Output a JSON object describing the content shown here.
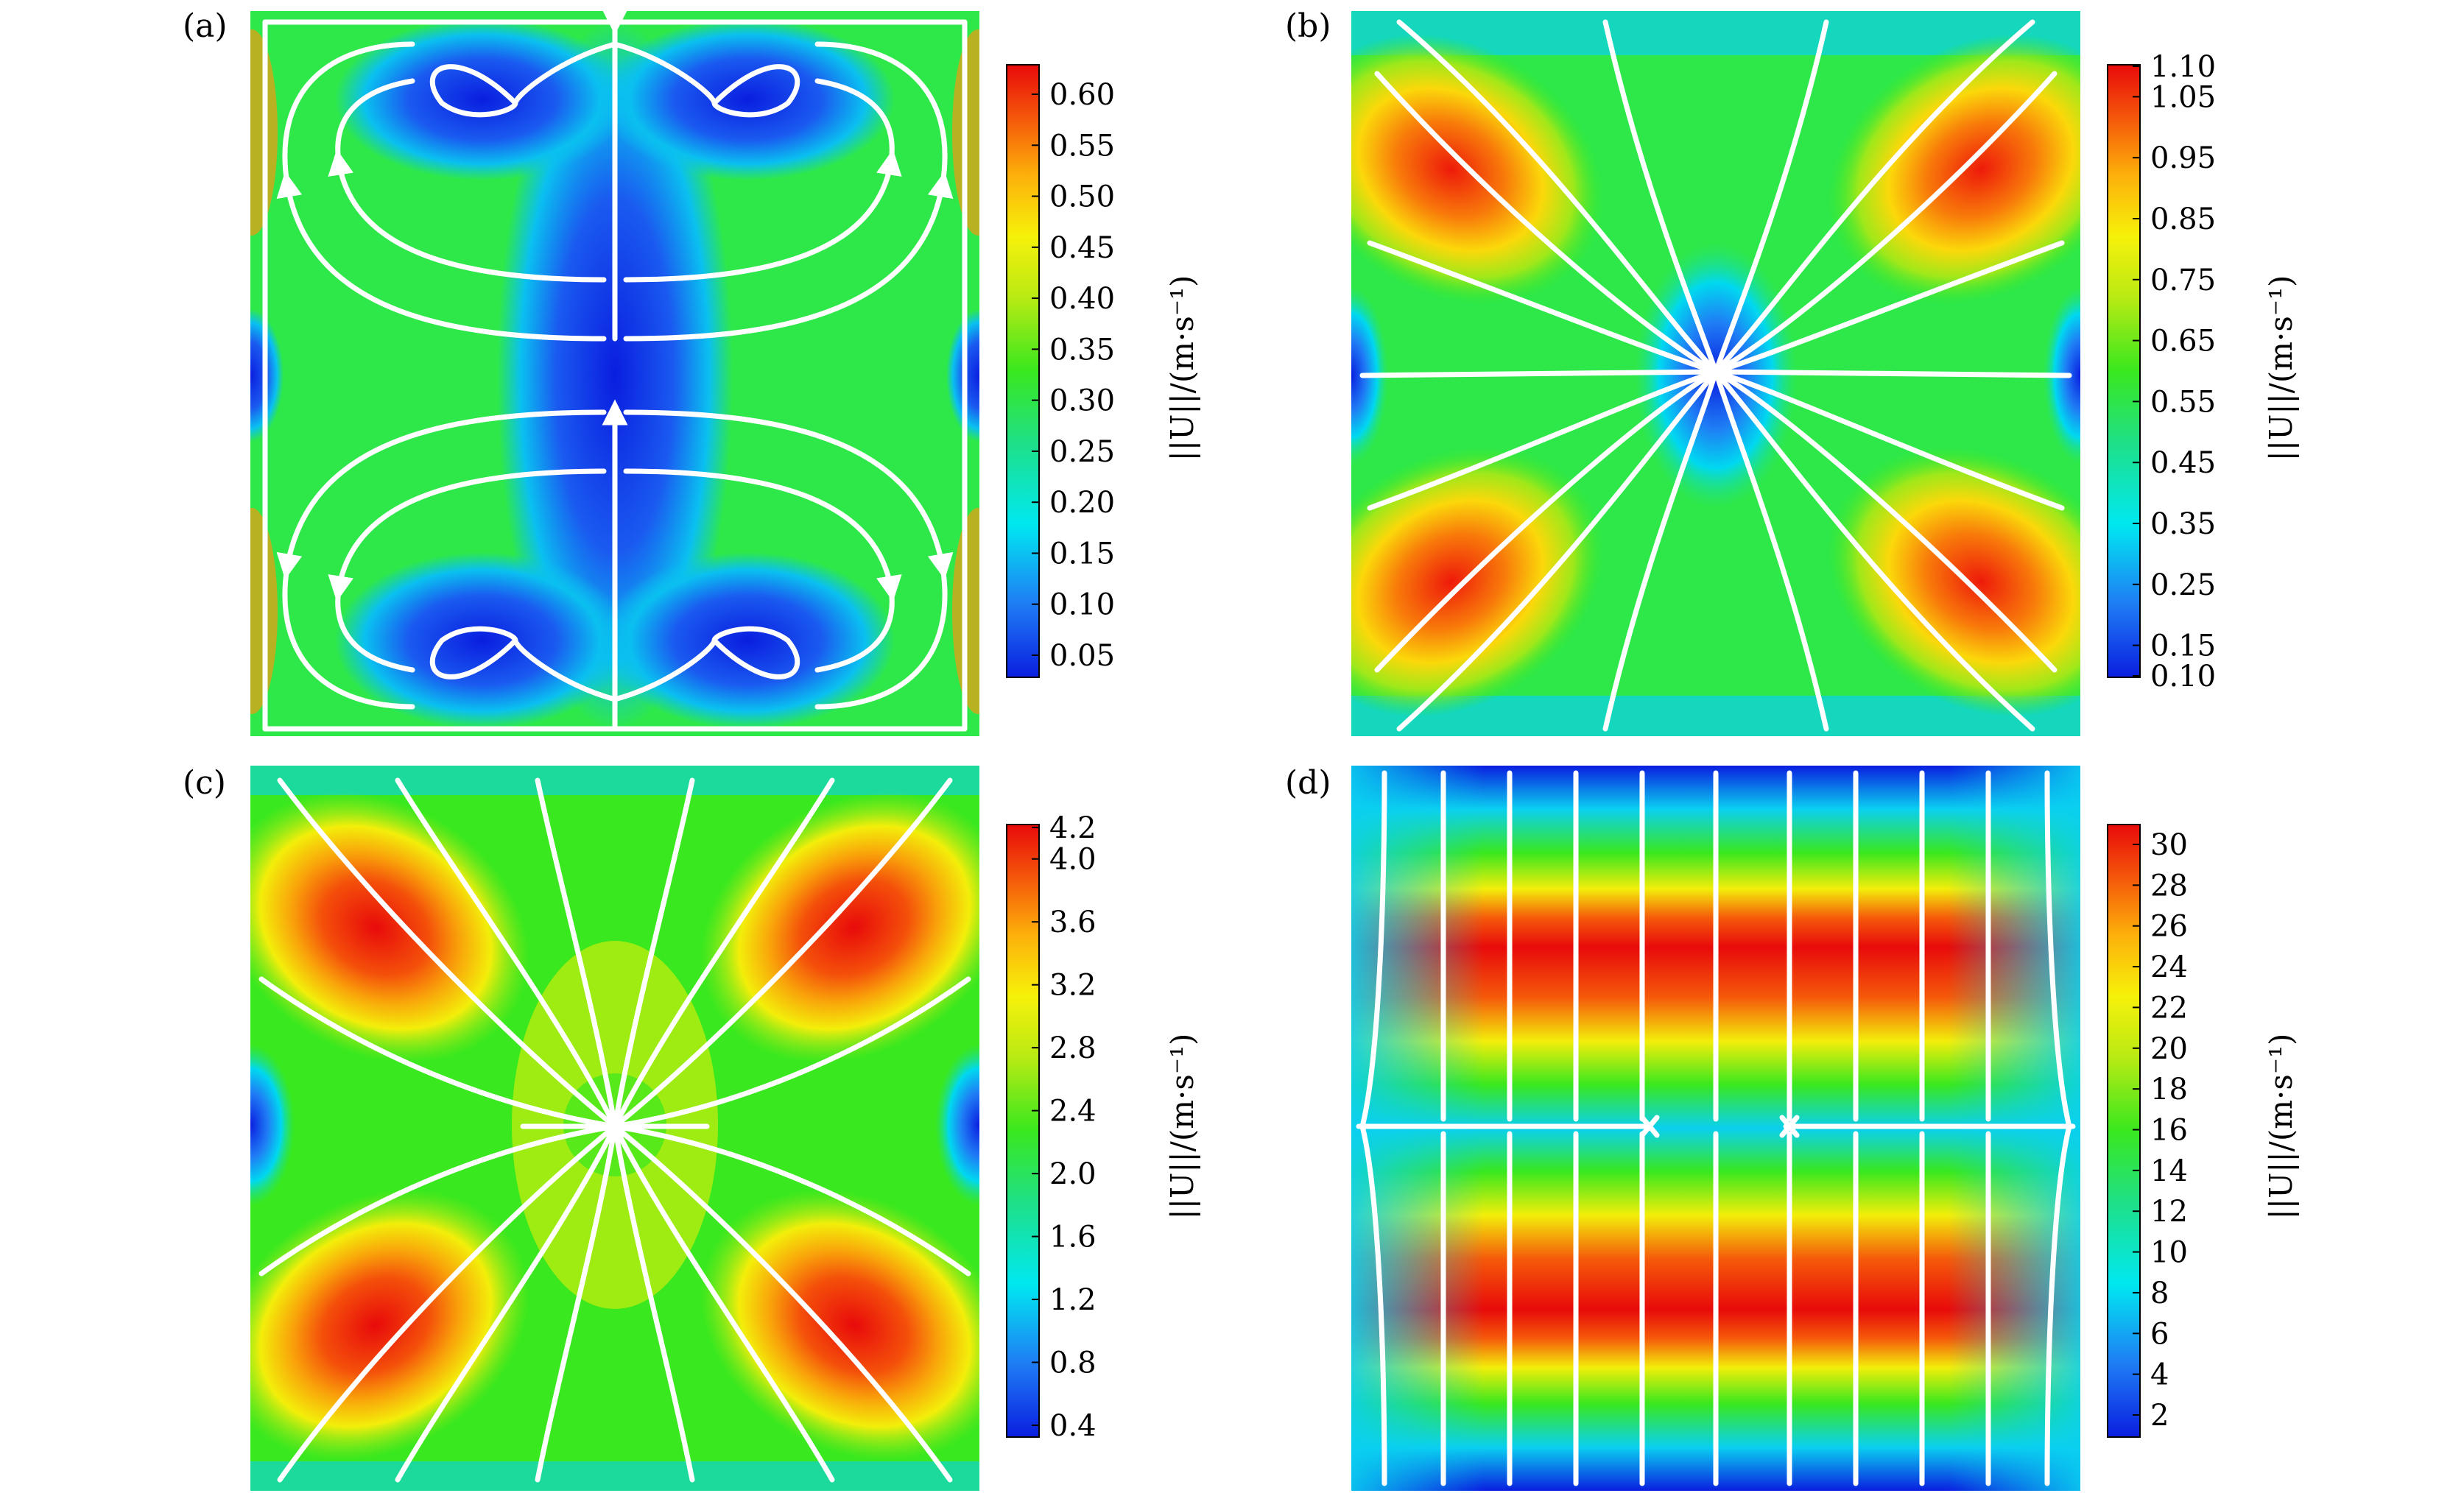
{
  "figure": {
    "panels": [
      {
        "label": "(a)",
        "colorbar_label": "||U||/(m·s⁻¹)",
        "ticks": [
          "0.05",
          "0.10",
          "0.15",
          "0.20",
          "0.25",
          "0.30",
          "0.35",
          "0.40",
          "0.45",
          "0.50",
          "0.55",
          "0.60"
        ]
      },
      {
        "label": "(b)",
        "colorbar_label": "||U||/(m·s⁻¹)",
        "ticks": [
          "0.10",
          "0.15",
          "0.25",
          "0.35",
          "0.45",
          "0.55",
          "0.65",
          "0.75",
          "0.85",
          "0.95",
          "1.05",
          "1.10"
        ]
      },
      {
        "label": "(c)",
        "colorbar_label": "||U||/(m·s⁻¹)",
        "ticks": [
          "0.4",
          "0.8",
          "1.2",
          "1.6",
          "2.0",
          "2.4",
          "2.8",
          "3.2",
          "3.6",
          "4.0",
          "4.2"
        ]
      },
      {
        "label": "(d)",
        "colorbar_label": "||U||/(m·s⁻¹)",
        "ticks": [
          "2",
          "4",
          "6",
          "8",
          "10",
          "12",
          "14",
          "16",
          "18",
          "20",
          "22",
          "24",
          "26",
          "28",
          "30"
        ]
      }
    ]
  },
  "chart_data": [
    {
      "type": "heatmap",
      "title": "(a)",
      "colorbar": {
        "label": "||U||/(m·s⁻¹)",
        "range": [
          0.03,
          0.63
        ],
        "ticks": [
          0.05,
          0.1,
          0.15,
          0.2,
          0.25,
          0.3,
          0.35,
          0.4,
          0.45,
          0.5,
          0.55,
          0.6
        ]
      },
      "colormap": "jet",
      "overlay": "streamlines",
      "pattern": "four counter-rotating vortices"
    },
    {
      "type": "heatmap",
      "title": "(b)",
      "colorbar": {
        "label": "||U||/(m·s⁻¹)",
        "range": [
          0.1,
          1.1
        ],
        "ticks": [
          0.1,
          0.15,
          0.25,
          0.35,
          0.45,
          0.55,
          0.65,
          0.75,
          0.85,
          0.95,
          1.05,
          1.1
        ]
      },
      "colormap": "jet",
      "overlay": "streamlines",
      "pattern": "radial sink at center"
    },
    {
      "type": "heatmap",
      "title": "(c)",
      "colorbar": {
        "label": "||U||/(m·s⁻¹)",
        "range": [
          0.3,
          4.3
        ],
        "ticks": [
          0.4,
          0.8,
          1.2,
          1.6,
          2.0,
          2.4,
          2.8,
          3.2,
          3.6,
          4.0,
          4.2
        ]
      },
      "colormap": "jet",
      "overlay": "streamlines",
      "pattern": "radial source at center"
    },
    {
      "type": "heatmap",
      "title": "(d)",
      "colorbar": {
        "label": "||U||/(m·s⁻¹)",
        "range": [
          1,
          31
        ],
        "ticks": [
          2,
          4,
          6,
          8,
          10,
          12,
          14,
          16,
          18,
          20,
          22,
          24,
          26,
          28,
          30
        ]
      },
      "colormap": "jet",
      "overlay": "streamlines",
      "pattern": "vertical flow converging to horizontal midline"
    }
  ]
}
